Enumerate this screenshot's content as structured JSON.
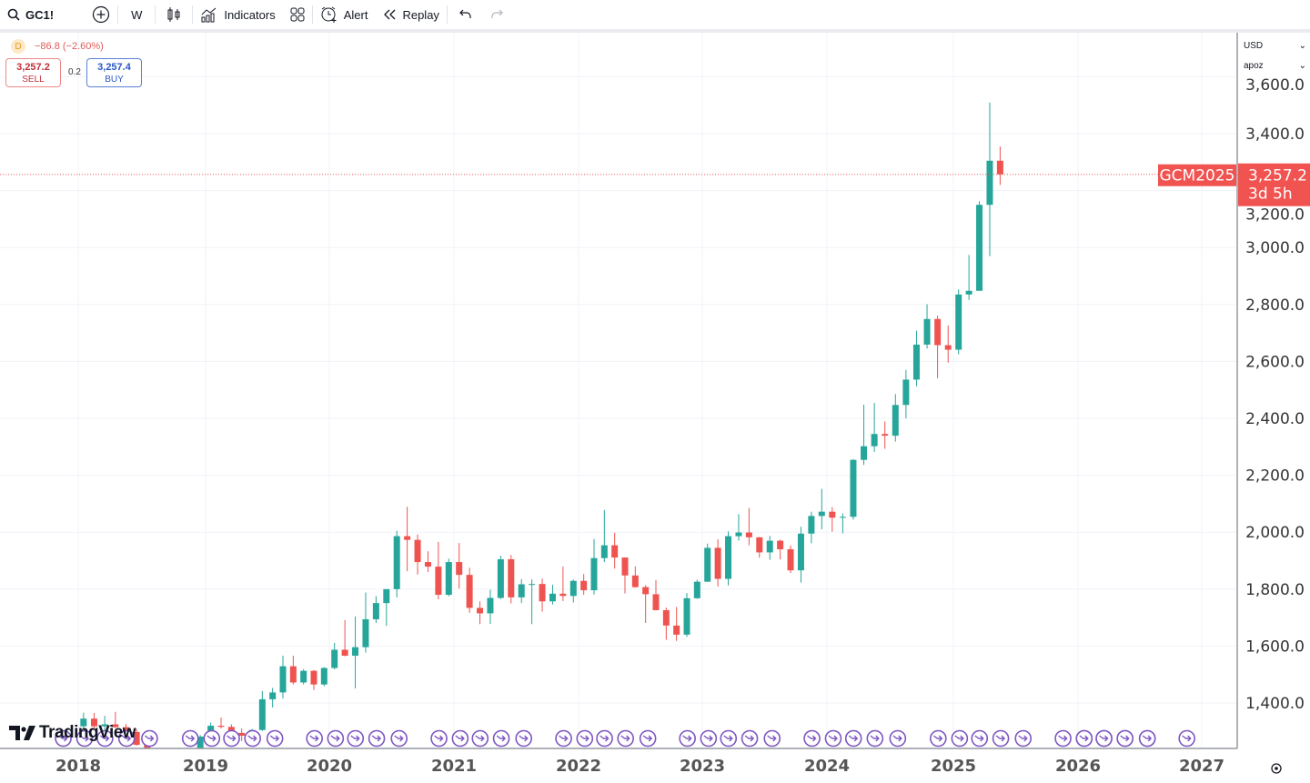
{
  "toolbar": {
    "symbol": "GC1!",
    "interval": "W",
    "indicators_label": "Indicators",
    "alert_label": "Alert",
    "replay_label": "Replay",
    "icons": [
      "search-icon",
      "add-symbol-icon",
      "candles-icon",
      "indicators-icon",
      "layout-grid-icon",
      "alarm-clock-icon",
      "replay-icon",
      "undo-icon",
      "redo-icon"
    ]
  },
  "legend": {
    "badge": "D",
    "change": "−86.8 (−2.60%)",
    "sell_price": "3,257.2",
    "sell_label": "SELL",
    "spread": "0.2",
    "buy_price": "3,257.4",
    "buy_label": "BUY"
  },
  "scale": {
    "currency": "USD",
    "mode": "apoz"
  },
  "last_price": {
    "symbol": "GCM2025",
    "price": "3,257.2",
    "countdown": "3d 5h",
    "value": 3257.2,
    "color": "#f05350"
  },
  "watermark": "TradingView",
  "colors": {
    "up": "#26a69a",
    "down": "#ef5350",
    "grid": "#f0f3fa",
    "event": "#7e57c2"
  },
  "chart_data": {
    "type": "candlestick",
    "xlabel": "",
    "ylabel": "",
    "ylim": [
      1240,
      3760
    ],
    "y_ticks": [
      1400,
      1600,
      1800,
      2000,
      2200,
      2400,
      2600,
      2800,
      3000,
      3200,
      3400,
      3600
    ],
    "y_tick_labels": [
      "1,400.0",
      "1,600.0",
      "1,800.0",
      "2,000.0",
      "2,200.0",
      "2,400.0",
      "2,600.0",
      "2,800.0",
      "3,000.0",
      "3,200.0",
      "3,400.0",
      "3,600.0"
    ],
    "x_ticks": [
      "2018",
      "2019",
      "2020",
      "2021",
      "2022",
      "2023",
      "2024",
      "2025",
      "2026",
      "2027"
    ],
    "grid": true,
    "candles": [
      [
        "2018-01",
        1318,
        1366,
        1307,
        1345
      ],
      [
        "2018-02",
        1345,
        1365,
        1307,
        1318
      ],
      [
        "2018-03",
        1318,
        1355,
        1303,
        1325
      ],
      [
        "2018-04",
        1325,
        1369,
        1312,
        1315
      ],
      [
        "2018-05",
        1315,
        1326,
        1282,
        1298
      ],
      [
        "2018-06",
        1298,
        1309,
        1250,
        1253
      ],
      [
        "2018-07",
        1253,
        1265,
        1211,
        1233
      ],
      [
        "2018-08",
        1233,
        1237,
        1167,
        1207
      ],
      [
        "2018-09",
        1207,
        1217,
        1183,
        1192
      ],
      [
        "2018-10",
        1192,
        1243,
        1182,
        1215
      ],
      [
        "2018-11",
        1215,
        1241,
        1196,
        1222
      ],
      [
        "2018-12",
        1222,
        1287,
        1221,
        1282
      ],
      [
        "2019-01",
        1282,
        1331,
        1276,
        1320
      ],
      [
        "2019-02",
        1320,
        1349,
        1311,
        1316
      ],
      [
        "2019-03",
        1316,
        1325,
        1284,
        1295
      ],
      [
        "2019-04",
        1295,
        1310,
        1266,
        1285
      ],
      [
        "2019-05",
        1285,
        1309,
        1267,
        1305
      ],
      [
        "2019-06",
        1305,
        1442,
        1302,
        1413
      ],
      [
        "2019-07",
        1413,
        1453,
        1384,
        1437
      ],
      [
        "2019-08",
        1437,
        1566,
        1416,
        1529
      ],
      [
        "2019-09",
        1529,
        1566,
        1465,
        1472
      ],
      [
        "2019-10",
        1472,
        1519,
        1465,
        1513
      ],
      [
        "2019-11",
        1513,
        1516,
        1445,
        1465
      ],
      [
        "2019-12",
        1465,
        1526,
        1459,
        1523
      ],
      [
        "2020-01",
        1523,
        1611,
        1518,
        1587
      ],
      [
        "2020-02",
        1587,
        1691,
        1564,
        1566
      ],
      [
        "2020-03",
        1566,
        1704,
        1451,
        1596
      ],
      [
        "2020-04",
        1596,
        1788,
        1577,
        1694
      ],
      [
        "2020-05",
        1694,
        1775,
        1681,
        1751
      ],
      [
        "2020-06",
        1751,
        1795,
        1671,
        1800
      ],
      [
        "2020-07",
        1800,
        2005,
        1771,
        1986
      ],
      [
        "2020-08",
        1986,
        2089,
        1863,
        1973
      ],
      [
        "2020-09",
        1973,
        1992,
        1851,
        1895
      ],
      [
        "2020-10",
        1895,
        1933,
        1860,
        1879
      ],
      [
        "2020-11",
        1879,
        1966,
        1764,
        1780
      ],
      [
        "2020-12",
        1780,
        1907,
        1775,
        1895
      ],
      [
        "2021-01",
        1895,
        1962,
        1802,
        1850
      ],
      [
        "2021-02",
        1850,
        1875,
        1717,
        1734
      ],
      [
        "2021-03",
        1734,
        1757,
        1677,
        1715
      ],
      [
        "2021-04",
        1715,
        1798,
        1678,
        1769
      ],
      [
        "2021-05",
        1769,
        1917,
        1765,
        1905
      ],
      [
        "2021-06",
        1905,
        1920,
        1750,
        1771
      ],
      [
        "2021-07",
        1771,
        1835,
        1751,
        1817
      ],
      [
        "2021-08",
        1817,
        1834,
        1677,
        1818
      ],
      [
        "2021-09",
        1818,
        1837,
        1721,
        1757
      ],
      [
        "2021-10",
        1757,
        1815,
        1746,
        1784
      ],
      [
        "2021-11",
        1784,
        1879,
        1758,
        1776
      ],
      [
        "2021-12",
        1776,
        1834,
        1753,
        1829
      ],
      [
        "2022-01",
        1829,
        1853,
        1780,
        1796
      ],
      [
        "2022-02",
        1796,
        1976,
        1781,
        1909
      ],
      [
        "2022-03",
        1909,
        2078,
        1895,
        1954
      ],
      [
        "2022-04",
        1954,
        1998,
        1872,
        1911
      ],
      [
        "2022-05",
        1911,
        1911,
        1785,
        1848
      ],
      [
        "2022-06",
        1848,
        1880,
        1805,
        1807
      ],
      [
        "2022-07",
        1807,
        1814,
        1681,
        1782
      ],
      [
        "2022-08",
        1782,
        1832,
        1726,
        1726
      ],
      [
        "2022-09",
        1726,
        1735,
        1622,
        1672
      ],
      [
        "2022-10",
        1672,
        1737,
        1618,
        1640
      ],
      [
        "2022-11",
        1640,
        1786,
        1632,
        1768
      ],
      [
        "2022-12",
        1768,
        1833,
        1766,
        1826
      ],
      [
        "2023-01",
        1826,
        1960,
        1826,
        1945
      ],
      [
        "2023-02",
        1945,
        1975,
        1809,
        1836
      ],
      [
        "2023-03",
        1836,
        2003,
        1813,
        1986
      ],
      [
        "2023-04",
        1986,
        2063,
        1970,
        1999
      ],
      [
        "2023-05",
        1999,
        2085,
        1954,
        1982
      ],
      [
        "2023-06",
        1982,
        1983,
        1910,
        1929
      ],
      [
        "2023-07",
        1929,
        1987,
        1903,
        1970
      ],
      [
        "2023-08",
        1970,
        1974,
        1904,
        1940
      ],
      [
        "2023-09",
        1940,
        1953,
        1857,
        1866
      ],
      [
        "2023-10",
        1866,
        2019,
        1823,
        1995
      ],
      [
        "2023-11",
        1995,
        2072,
        1961,
        2057
      ],
      [
        "2023-12",
        2057,
        2152,
        2010,
        2072
      ],
      [
        "2024-01",
        2072,
        2088,
        2002,
        2051
      ],
      [
        "2024-02",
        2051,
        2066,
        1996,
        2054
      ],
      [
        "2024-03",
        2054,
        2257,
        2044,
        2254
      ],
      [
        "2024-04",
        2254,
        2448,
        2236,
        2302
      ],
      [
        "2024-05",
        2302,
        2454,
        2282,
        2345
      ],
      [
        "2024-06",
        2345,
        2389,
        2293,
        2339
      ],
      [
        "2024-07",
        2339,
        2485,
        2318,
        2447
      ],
      [
        "2024-08",
        2447,
        2570,
        2400,
        2536
      ],
      [
        "2024-09",
        2536,
        2708,
        2513,
        2659
      ],
      [
        "2024-10",
        2659,
        2801,
        2645,
        2749
      ],
      [
        "2024-11",
        2749,
        2761,
        2541,
        2657
      ],
      [
        "2024-12",
        2657,
        2726,
        2596,
        2641
      ],
      [
        "2025-01",
        2641,
        2853,
        2625,
        2835
      ],
      [
        "2025-02",
        2835,
        2974,
        2816,
        2848
      ],
      [
        "2025-03",
        2848,
        3163,
        2855,
        3150
      ],
      [
        "2025-04",
        3150,
        3509,
        2970,
        3305
      ],
      [
        "2025-05",
        3305,
        3355,
        3220,
        3257.2
      ]
    ]
  }
}
